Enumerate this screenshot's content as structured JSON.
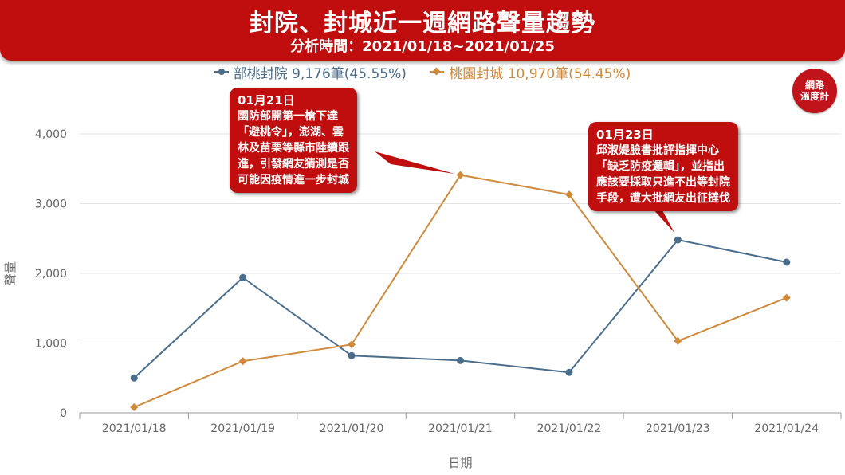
{
  "header": {
    "title": "封院、封城近一週網路聲量趨勢",
    "subtitle": "分析時間：2021/01/18~2021/01/25"
  },
  "logo": {
    "line1": "網路",
    "line2": "溫度計"
  },
  "colors": {
    "header_bg": "#c00d0d",
    "series1": "#4a6d8c",
    "series2": "#d08a3c",
    "axis": "#999999",
    "grid": "#e3e3e3"
  },
  "legend": [
    {
      "label": "部桃封院 9,176筆(45.55%)",
      "color": "#4a6d8c",
      "marker": "circle"
    },
    {
      "label": "桃園封城 10,970筆(54.45%)",
      "color": "#d08a3c",
      "marker": "diamond"
    }
  ],
  "callouts": [
    {
      "date": "01月21日",
      "lines": [
        "國防部開第一槍下達",
        "「避桃令」，澎湖、雲",
        "林及苗栗等縣市陸續跟",
        "進，引發網友猜測是否",
        "可能因疫情進一步封城"
      ]
    },
    {
      "date": "01月23日",
      "lines": [
        "邱淑媞臉書批評指揮中心",
        "「缺乏防疫邏輯」，並指出",
        "應該要採取只進不出等封院",
        "手段，遭大批網友出征撻伐"
      ]
    }
  ],
  "chart_data": {
    "type": "line",
    "categories": [
      "2021/01/18",
      "2021/01/19",
      "2021/01/20",
      "2021/01/21",
      "2021/01/22",
      "2021/01/23",
      "2021/01/24"
    ],
    "series": [
      {
        "name": "部桃封院",
        "color": "#4a6d8c",
        "marker": "circle",
        "values": [
          500,
          1940,
          820,
          750,
          580,
          2480,
          2160
        ]
      },
      {
        "name": "桃園封城",
        "color": "#d08a3c",
        "marker": "diamond",
        "values": [
          80,
          740,
          980,
          3410,
          3130,
          1030,
          1650
        ]
      }
    ],
    "xlabel": "日期",
    "ylabel": "聲量",
    "ylim": [
      0,
      4000
    ],
    "yticks": [
      0,
      1000,
      2000,
      3000,
      4000
    ],
    "ytick_labels": [
      "0",
      "1,000",
      "2,000",
      "3,000",
      "4,000"
    ],
    "grid": true,
    "legend_position": "top-center"
  }
}
